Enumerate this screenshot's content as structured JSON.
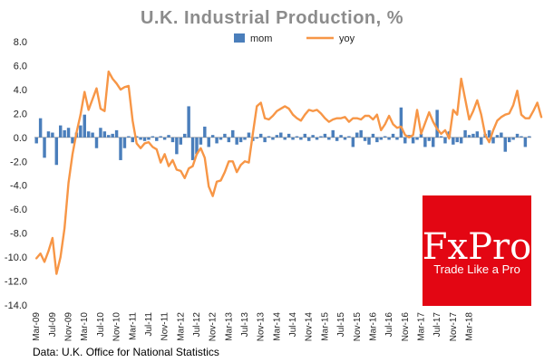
{
  "chart_data": {
    "type": "bar",
    "title": "U.K. Industrial Production, %",
    "source": "Data: U.K. Office for National Statistics",
    "ylim": [
      -14,
      8
    ],
    "y_ticks": [
      "8.0",
      "6.0",
      "4.0",
      "2.0",
      "0.0",
      "-2.0",
      "-4.0",
      "-6.0",
      "-8.0",
      "-10.0",
      "-12.0",
      "-14.0"
    ],
    "x_ticks": [
      "Mar-09",
      "Jul-09",
      "Nov-09",
      "Mar-10",
      "Jul-10",
      "Nov-10",
      "Mar-11",
      "Jul-11",
      "Nov-11",
      "Mar-12",
      "Jul-12",
      "Nov-12",
      "Mar-13",
      "Jul-13",
      "Nov-13",
      "Mar-14",
      "Jul-14",
      "Nov-14",
      "Mar-15",
      "Jul-15",
      "Nov-15",
      "Mar-16",
      "Jul-16",
      "Nov-16",
      "Mar-17",
      "Jul-17",
      "Nov-17",
      "Mar-18"
    ],
    "grid": false,
    "legend_position": "top",
    "series": [
      {
        "name": "mom",
        "type": "bar",
        "color": "#4a7ebb",
        "values": [
          -0.5,
          1.6,
          -1.7,
          0.5,
          0.4,
          -2.3,
          1.0,
          0.6,
          0.8,
          -0.5,
          0.4,
          1.0,
          1.9,
          0.5,
          0.4,
          -0.9,
          0.8,
          0.5,
          0.2,
          0.3,
          0.6,
          -1.9,
          -0.9,
          0.1,
          -0.4,
          0.1,
          -0.2,
          -0.3,
          -0.2,
          0.1,
          -0.3,
          0.1,
          -0.2,
          0.2,
          -0.4,
          -1.4,
          -0.6,
          0.3,
          2.6,
          -1.9,
          -1.4,
          -0.6,
          0.9,
          -0.8,
          0.2,
          -0.5,
          -0.2,
          0.3,
          -0.4,
          0.6,
          -0.6,
          -0.4,
          -0.2,
          0.4,
          -0.3,
          -0.1,
          0.3,
          -0.4,
          0.1,
          -0.2,
          0.2,
          0.4,
          -0.2,
          0.3,
          -0.2,
          0.1,
          -0.2,
          0.3,
          -0.3,
          0.2,
          -0.2,
          0.1,
          0.3,
          -0.2,
          0.6,
          -0.3,
          0.2,
          -0.2,
          0.1,
          -0.8,
          0.4,
          0.6,
          -0.3,
          -0.6,
          0.3,
          -0.4,
          -0.2,
          0.1,
          -0.2,
          0.3,
          -0.2,
          2.5,
          -0.5,
          0.2,
          -0.5,
          -0.2,
          0.3,
          -0.8,
          -0.3,
          -0.8,
          2.3,
          0.1,
          -0.5,
          0.5,
          -0.6,
          -0.4,
          -0.5,
          0.6,
          0.2,
          0.3,
          0.5,
          -0.6,
          0.3,
          0.6,
          -0.5,
          0.2,
          0.4,
          -1.2,
          -0.4,
          -0.2,
          0.3,
          0.1,
          -0.8,
          0.1
        ]
      },
      {
        "name": "yoy",
        "type": "line",
        "color": "#f79646",
        "values": [
          -10.1,
          -9.7,
          -10.4,
          -9.5,
          -8.4,
          -11.4,
          -10.0,
          -7.6,
          -3.8,
          -1.4,
          0.4,
          1.9,
          3.8,
          2.3,
          3.2,
          4.1,
          2.4,
          2.2,
          5.5,
          4.9,
          4.5,
          4.0,
          4.2,
          4.3,
          1.4,
          -0.5,
          -0.9,
          -0.5,
          -0.4,
          -0.8,
          -1.0,
          -2.1,
          -1.4,
          -2.4,
          -1.9,
          -2.7,
          -2.8,
          -3.4,
          -2.6,
          -2.4,
          -1.4,
          -0.9,
          -1.7,
          -4.1,
          -4.9,
          -3.7,
          -3.6,
          -2.9,
          -2.0,
          -2.0,
          -2.9,
          -2.3,
          -2.0,
          -2.1,
          0.3,
          2.6,
          2.9,
          1.6,
          1.5,
          1.8,
          2.2,
          2.4,
          2.6,
          2.4,
          1.9,
          1.6,
          1.4,
          1.9,
          2.3,
          2.2,
          2.3,
          2.0,
          1.6,
          1.3,
          1.5,
          1.6,
          1.6,
          1.7,
          1.3,
          1.6,
          1.6,
          1.5,
          1.8,
          1.8,
          1.5,
          1.9,
          0.6,
          1.1,
          1.8,
          1.1,
          0.8,
          0.9,
          0.2,
          0.0,
          0.2,
          2.3,
          0.3,
          1.2,
          2.1,
          1.3,
          0.7,
          0.3,
          0.6,
          -0.1,
          2.3,
          1.9,
          4.9,
          3.2,
          1.5,
          2.2,
          3.1,
          1.9,
          0.2,
          -0.4,
          0.6,
          1.4,
          1.7,
          1.9,
          2.0,
          2.7,
          3.9,
          1.9,
          1.6,
          1.6,
          2.2,
          2.9,
          1.7
        ]
      }
    ]
  },
  "logo": {
    "text": "FxPro",
    "tagline": "Trade Like a Pro",
    "background": "#e30613"
  }
}
